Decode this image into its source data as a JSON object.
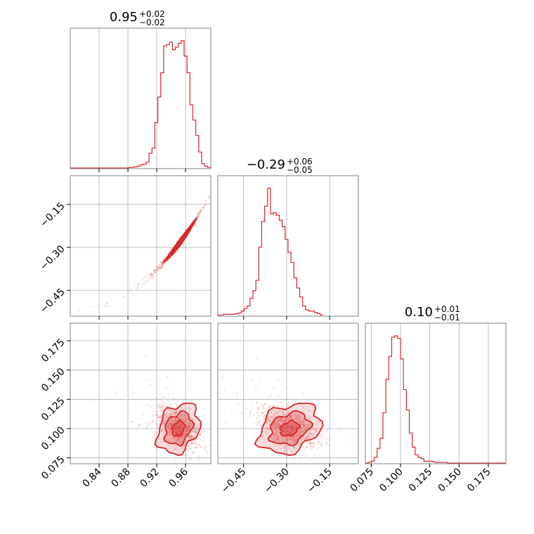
{
  "chart_data": {
    "type": "corner",
    "colors": {
      "main": "#d62728",
      "grid": "#b0b0b0",
      "frame": "#808080"
    },
    "grid": true,
    "parameters": [
      {
        "range": [
          0.8,
          0.995
        ],
        "ticks": [
          0.84,
          0.88,
          0.92,
          0.96
        ],
        "tick_labels": [
          "0.84",
          "0.88",
          "0.92",
          "0.96"
        ],
        "title": {
          "median": "0.95",
          "upper": "+0.02",
          "lower": "−0.02"
        }
      },
      {
        "range": [
          -0.54,
          -0.05
        ],
        "ticks": [
          -0.45,
          -0.3,
          -0.15
        ],
        "tick_labels": [
          "−0.45",
          "−0.30",
          "−0.15"
        ],
        "title": {
          "median": "−0.29",
          "upper": "+0.06",
          "lower": "−0.05"
        }
      },
      {
        "range": [
          0.07,
          0.19
        ],
        "ticks": [
          0.075,
          0.1,
          0.125,
          0.15,
          0.175
        ],
        "tick_labels": [
          "0.075",
          "0.100",
          "0.125",
          "0.150",
          "0.175"
        ],
        "title": {
          "median": "0.10",
          "upper": "+0.01",
          "lower": "−0.01"
        }
      }
    ],
    "histograms": [
      {
        "param": 0,
        "bin_width": 0.00405,
        "bins_start": 0.8,
        "counts": [
          0.5,
          0.5,
          0.5,
          0.5,
          0.5,
          0.5,
          0.5,
          0.5,
          0.5,
          0.5,
          0.5,
          0.5,
          0.5,
          0.5,
          0.5,
          0.5,
          0.5,
          0.5,
          0.5,
          0.5,
          1,
          1,
          1.5,
          2,
          3,
          3.5,
          5,
          12,
          16,
          36,
          56,
          75,
          96,
          97,
          99,
          93,
          95,
          98,
          100,
          88,
          75,
          50,
          38,
          26,
          13,
          4,
          2,
          1
        ]
      },
      {
        "param": 1,
        "bin_width": 0.0102,
        "bins_start": -0.54,
        "counts": [
          1,
          1,
          1.5,
          1.5,
          1.5,
          1.5,
          2,
          2.5,
          4,
          6,
          8,
          14,
          20,
          28,
          54,
          74,
          86,
          100,
          80,
          81,
          79,
          75,
          70,
          60,
          50,
          42,
          30,
          22,
          15,
          8,
          5,
          4,
          4,
          3,
          2,
          1
        ]
      },
      {
        "param": 2,
        "bin_width": 0.0025,
        "bins_start": 0.07,
        "counts": [
          0.5,
          1,
          2,
          5,
          12,
          20,
          40,
          66,
          84,
          99,
          100,
          98,
          82,
          58,
          42,
          24,
          13,
          7,
          5,
          4,
          2,
          2,
          2,
          1.5,
          1,
          1,
          1,
          1,
          0.5,
          0.5,
          0.5,
          0.5,
          0.5,
          0.5,
          0.5,
          0.5,
          0.5,
          0.5,
          0.5,
          0.5,
          0.5,
          0.5,
          0.5,
          0.5,
          0.5,
          0.5,
          0.5,
          0.5
        ]
      }
    ],
    "pairs": [
      {
        "x": 0,
        "y": 1,
        "relation": "curved",
        "contour_levels": 3
      },
      {
        "x": 0,
        "y": 2,
        "relation": "elliptical",
        "center": [
          0.95,
          0.1
        ],
        "contour_levels": 3
      },
      {
        "x": 1,
        "y": 2,
        "relation": "elliptical",
        "center": [
          -0.29,
          0.1
        ],
        "contour_levels": 3
      }
    ]
  }
}
